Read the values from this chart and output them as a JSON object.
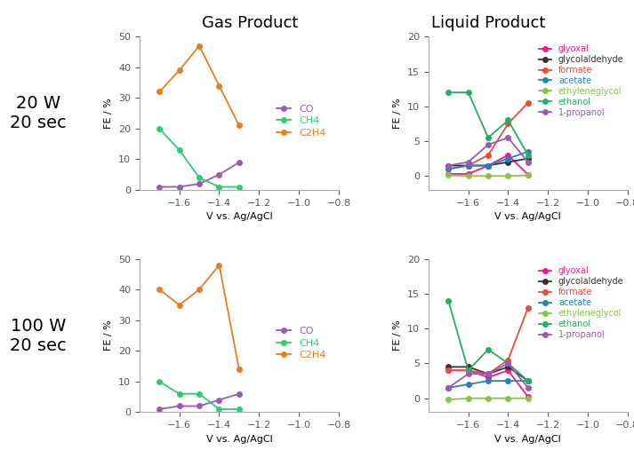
{
  "top_gas": {
    "x": [
      -1.7,
      -1.6,
      -1.5,
      -1.4,
      -1.3
    ],
    "CO": [
      1,
      1,
      2,
      5,
      9
    ],
    "CH4": [
      20,
      13,
      4,
      1,
      1
    ],
    "C2H4": [
      32,
      39,
      47,
      34,
      21
    ]
  },
  "top_liquid": {
    "x": [
      -1.7,
      -1.6,
      -1.5,
      -1.4,
      -1.3
    ],
    "glyoxal": [
      0.3,
      0.3,
      1.5,
      3.0,
      0.2
    ],
    "glycolaldehyde": [
      1.5,
      1.5,
      1.5,
      2.0,
      2.5
    ],
    "formate": [
      1.0,
      1.5,
      3.0,
      7.5,
      10.5
    ],
    "acetate": [
      1.0,
      1.5,
      1.5,
      2.5,
      3.5
    ],
    "ethyleneglycol": [
      0.1,
      0.0,
      0.0,
      0.0,
      0.1
    ],
    "ethanol": [
      12.0,
      12.0,
      5.5,
      8.0,
      3.0
    ],
    "1-propanol": [
      1.5,
      2.0,
      4.5,
      5.5,
      2.0
    ]
  },
  "bot_gas": {
    "x": [
      -1.7,
      -1.6,
      -1.5,
      -1.4,
      -1.3
    ],
    "CO": [
      1,
      2,
      2,
      4,
      6
    ],
    "CH4": [
      10,
      6,
      6,
      1,
      1
    ],
    "C2H4": [
      40,
      35,
      40,
      48,
      14
    ]
  },
  "bot_liquid": {
    "x": [
      -1.7,
      -1.6,
      -1.5,
      -1.4,
      -1.3
    ],
    "glyoxal": [
      4.0,
      4.0,
      3.0,
      4.0,
      0.2
    ],
    "glycolaldehyde": [
      4.5,
      4.5,
      3.5,
      4.5,
      2.5
    ],
    "formate": [
      4.0,
      4.0,
      3.5,
      5.5,
      13.0
    ],
    "acetate": [
      1.5,
      2.0,
      2.5,
      2.5,
      2.5
    ],
    "ethyleneglycol": [
      -0.2,
      0.0,
      0.0,
      0.0,
      0.0
    ],
    "ethanol": [
      14.0,
      4.0,
      7.0,
      5.0,
      2.5
    ],
    "1-propanol": [
      1.5,
      3.5,
      3.5,
      5.0,
      1.5
    ]
  },
  "gas_colors": {
    "CO": "#9b59b6",
    "CH4": "#2ecc71",
    "C2H4": "#e67e22"
  },
  "liquid_colors": {
    "glyoxal": "#e91e8c",
    "glycolaldehyde": "#333333",
    "formate": "#e74c3c",
    "acetate": "#2980b9",
    "ethyleneglycol": "#8bc34a",
    "ethanol": "#27ae60",
    "1-propanol": "#9b59b6"
  },
  "row_labels": [
    "20 W\n20 sec",
    "100 W\n20 sec"
  ],
  "col_titles": [
    "Gas Product",
    "Liquid Product"
  ],
  "xlabel": "V vs. Ag/AgCl",
  "ylabel": "FE / %",
  "gas_ylim": [
    0,
    50
  ],
  "liquid_ylim": [
    -2,
    20
  ],
  "liquid_yticks": [
    0,
    5,
    10,
    15,
    20
  ],
  "xlim": [
    -1.8,
    -0.8
  ],
  "xticks": [
    -1.6,
    -1.4,
    -1.2,
    -1.0,
    -0.8
  ],
  "gas_yticks": [
    0,
    10,
    20,
    30,
    40,
    50
  ],
  "bg_color": "#ffffff"
}
